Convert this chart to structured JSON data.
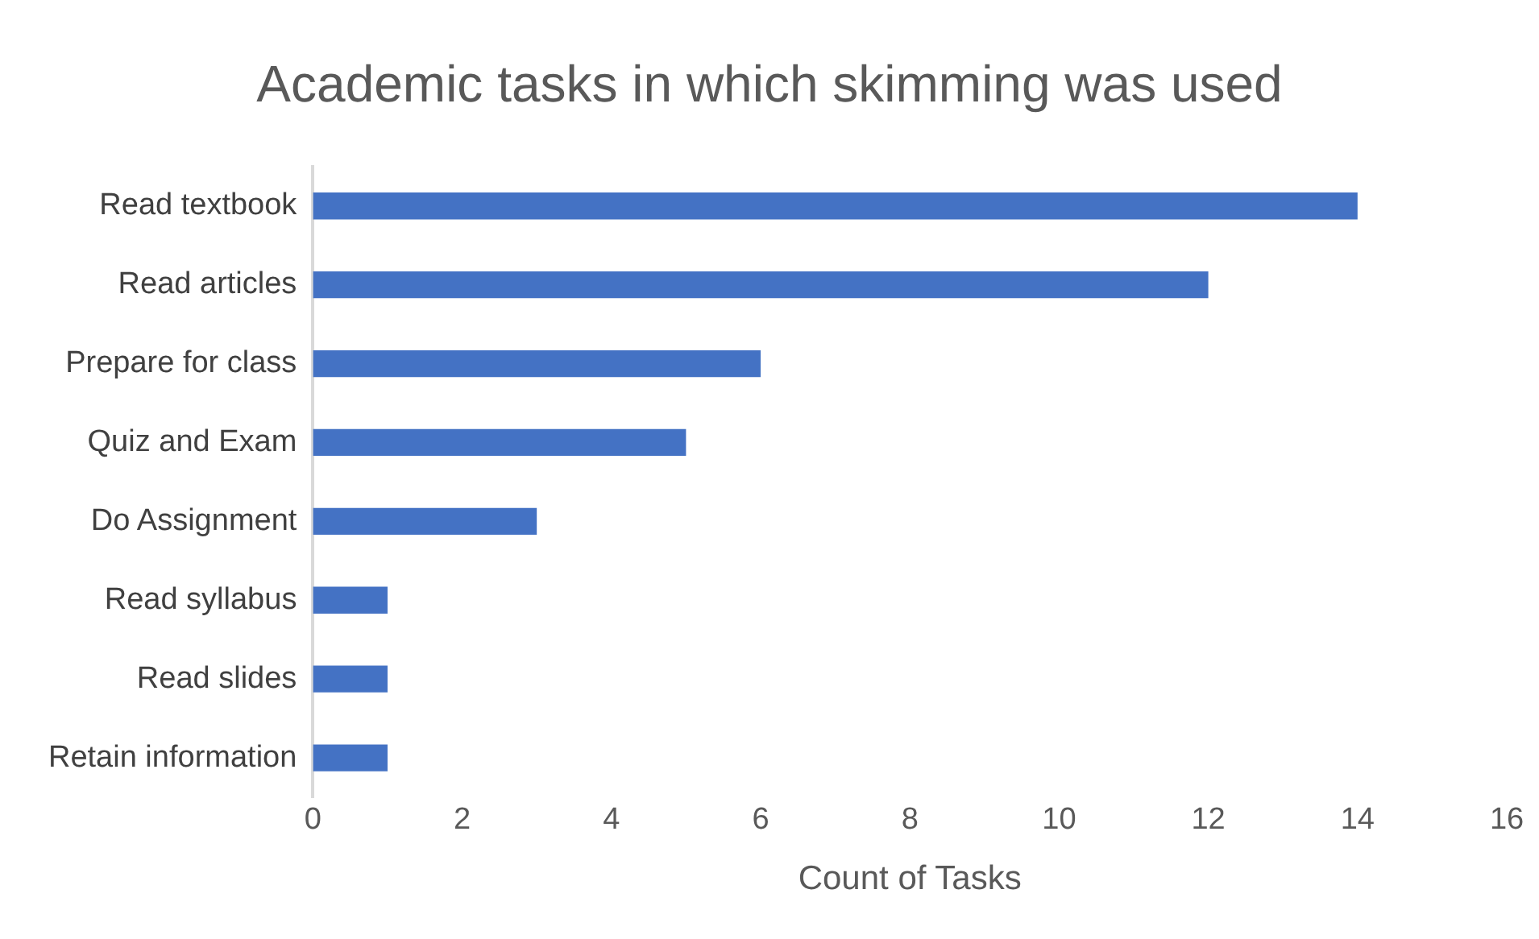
{
  "chart_data": {
    "type": "bar",
    "orientation": "horizontal",
    "title": "Academic tasks in which skimming was used",
    "xlabel": "Count of Tasks",
    "categories": [
      "Read textbook",
      "Read articles",
      "Prepare for class",
      "Quiz and Exam",
      "Do Assignment",
      "Read syllabus",
      "Read slides",
      "Retain information"
    ],
    "values": [
      14,
      12,
      6,
      5,
      3,
      1,
      1,
      1
    ],
    "color": "#4472c4",
    "xlim": [
      0,
      16
    ],
    "xticks": [
      0,
      2,
      4,
      6,
      8,
      10,
      12,
      14,
      16
    ]
  }
}
